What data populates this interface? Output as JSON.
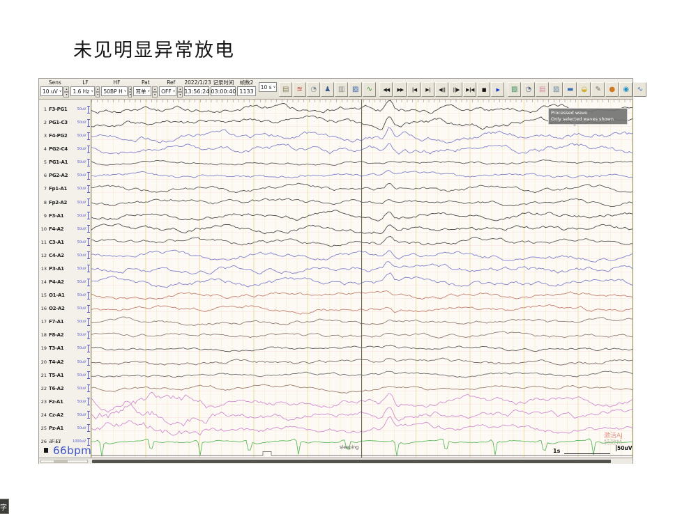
{
  "page": {
    "title": "未见明显异常放电",
    "subtitle_badge": "字"
  },
  "ui": {
    "dropdown_arrow": "∨",
    "spinner_up": "▴",
    "spinner_down": "▾"
  },
  "toolbar": {
    "filters": [
      {
        "label": "Sens",
        "value": "10 uV"
      },
      {
        "label": "LF",
        "value": "1.6 Hz"
      },
      {
        "label": "HF",
        "value": "50BP H"
      },
      {
        "label": "Pat",
        "value": "耳单"
      },
      {
        "label": "Ref",
        "value": "OFF"
      }
    ],
    "date": "2022/1/23",
    "time": "13:56:24",
    "record_label": "记录时间",
    "record_value": "03:00:40",
    "frame_label": "帧数2",
    "frame_value": "1133",
    "epoch": "10 s",
    "icons1": [
      {
        "name": "open-file-icon",
        "glyph": "▤",
        "color": "#8a7f5d"
      },
      {
        "name": "signal-setup-icon",
        "glyph": "≋",
        "color": "#c03a2e"
      },
      {
        "name": "montage-globe-icon",
        "glyph": "◔",
        "color": "#7d8b99"
      },
      {
        "name": "patient-icon",
        "glyph": "♟",
        "color": "#3a5a8c"
      },
      {
        "name": "print-icon",
        "glyph": "▥",
        "color": "#8b8b8b"
      },
      {
        "name": "snapshot-icon",
        "glyph": "▨",
        "color": "#3a6ab0"
      },
      {
        "name": "trend-chart-icon",
        "glyph": "∿",
        "color": "#3a8a3a"
      }
    ],
    "playback": [
      {
        "name": "rewind-button",
        "glyph": "◀◀",
        "color": "#1f1f1f"
      },
      {
        "name": "fast-forward-button",
        "glyph": "▶▶",
        "color": "#1f1f1f"
      },
      {
        "name": "go-start-button",
        "glyph": "∣◀",
        "color": "#1f1f1f"
      },
      {
        "name": "go-end-button",
        "glyph": "▶∣",
        "color": "#1f1f1f"
      },
      {
        "name": "step-back-button",
        "glyph": "◀∣∣",
        "color": "#1f1f1f"
      },
      {
        "name": "step-forward-button",
        "glyph": "∣∣▶",
        "color": "#1f1f1f"
      },
      {
        "name": "center-cursor-button",
        "glyph": "▶∣◀",
        "color": "#1f1f1f"
      },
      {
        "name": "stop-button",
        "glyph": "■",
        "color": "#111111"
      },
      {
        "name": "play-button",
        "glyph": "▶",
        "color": "#1538c8"
      }
    ],
    "icons2": [
      {
        "name": "spectrum-chart-icon",
        "glyph": "▧",
        "color": "#3a8a5a"
      },
      {
        "name": "zoom-wave-icon",
        "glyph": "◔",
        "color": "#5a6a8a"
      },
      {
        "name": "annotate-wave-icon",
        "glyph": "▤",
        "color": "#d08aa0"
      },
      {
        "name": "mini-chart-icon",
        "glyph": "▨",
        "color": "#6a8aa0"
      },
      {
        "name": "ruler-icon",
        "glyph": "▬",
        "color": "#3a6ab0"
      },
      {
        "name": "event-folder-icon",
        "glyph": "◒",
        "color": "#d0b030"
      },
      {
        "name": "report-pen-icon",
        "glyph": "✎",
        "color": "#707070"
      },
      {
        "name": "sphere-map-icon",
        "glyph": "●",
        "color": "#d07820"
      },
      {
        "name": "brain-topo-icon",
        "glyph": "◉",
        "color": "#2090c0"
      },
      {
        "name": "wave-analysis-icon",
        "glyph": "∿",
        "color": "#3a70c0"
      }
    ]
  },
  "overlay": {
    "line1": "Processed wave",
    "line2": "Only selected waves shown"
  },
  "channels": [
    {
      "num": "1",
      "label": "F3-PG1",
      "scale": "50uV",
      "color": "#474747",
      "amp": 4.5,
      "ev": 10
    },
    {
      "num": "2",
      "label": "PG1-C3",
      "scale": "50uV",
      "color": "#474747",
      "amp": 4.5,
      "ev": 12
    },
    {
      "num": "3",
      "label": "F4-PG2",
      "scale": "50uV",
      "color": "#8080cc",
      "amp": 5,
      "ev": 14
    },
    {
      "num": "4",
      "label": "PG2-C4",
      "scale": "50uV",
      "color": "#8080cc",
      "amp": 5,
      "ev": 12
    },
    {
      "num": "5",
      "label": "PG1-A1",
      "scale": "50uV",
      "color": "#565656",
      "amp": 2.5,
      "ev": 3
    },
    {
      "num": "6",
      "label": "PG2-A2",
      "scale": "50uV",
      "color": "#8080cc",
      "amp": 3,
      "ev": 4
    },
    {
      "num": "7",
      "label": "Fp1-A1",
      "scale": "50uV",
      "color": "#565656",
      "amp": 3.5,
      "ev": 5
    },
    {
      "num": "8",
      "label": "Fp2-A2",
      "scale": "50uV",
      "color": "#565656",
      "amp": 3.5,
      "ev": 5
    },
    {
      "num": "9",
      "label": "F3-A1",
      "scale": "50uV",
      "color": "#474747",
      "amp": 4,
      "ev": 8
    },
    {
      "num": "10",
      "label": "F4-A2",
      "scale": "50uV",
      "color": "#474747",
      "amp": 4,
      "ev": 9
    },
    {
      "num": "11",
      "label": "C3-A1",
      "scale": "50uV",
      "color": "#565656",
      "amp": 3.5,
      "ev": 7
    },
    {
      "num": "12",
      "label": "C4-A2",
      "scale": "50uV",
      "color": "#8080cc",
      "amp": 4,
      "ev": 8
    },
    {
      "num": "13",
      "label": "P3-A1",
      "scale": "50uV",
      "color": "#8080cc",
      "amp": 4.5,
      "ev": 9
    },
    {
      "num": "14",
      "label": "P4-A2",
      "scale": "50uV",
      "color": "#8080cc",
      "amp": 4.5,
      "ev": 10
    },
    {
      "num": "15",
      "label": "O1-A1",
      "scale": "50uV",
      "color": "#c47e6e",
      "amp": 3.5,
      "ev": 4
    },
    {
      "num": "16",
      "label": "O2-A2",
      "scale": "50uV",
      "color": "#c47e6e",
      "amp": 3.5,
      "ev": 4
    },
    {
      "num": "17",
      "label": "F7-A1",
      "scale": "50uV",
      "color": "#8d7b70",
      "amp": 3,
      "ev": 3
    },
    {
      "num": "18",
      "label": "F8-A2",
      "scale": "50uV",
      "color": "#8d7b70",
      "amp": 3,
      "ev": 3
    },
    {
      "num": "19",
      "label": "T3-A1",
      "scale": "50uV",
      "color": "#5a5a5a",
      "amp": 2.5,
      "ev": 3
    },
    {
      "num": "20",
      "label": "T4-A2",
      "scale": "50uV",
      "color": "#776a62",
      "amp": 3,
      "ev": 4
    },
    {
      "num": "21",
      "label": "T5-A1",
      "scale": "50uV",
      "color": "#6a6a6a",
      "amp": 2.5,
      "ev": 3
    },
    {
      "num": "22",
      "label": "T6-A2",
      "scale": "50uV",
      "color": "#9a7d6d",
      "amp": 3,
      "ev": 3
    },
    {
      "num": "23",
      "label": "Fz-A1",
      "scale": "50uV",
      "color": "#cf8ccf",
      "amp": 5,
      "ev": 13,
      "burst": true
    },
    {
      "num": "24",
      "label": "Cz-A2",
      "scale": "50uV",
      "color": "#cf8ccf",
      "amp": 5.5,
      "ev": 14,
      "burst": true
    },
    {
      "num": "25",
      "label": "Pz-A1",
      "scale": "50uV",
      "color": "#cf8ccf",
      "amp": 4.5,
      "ev": 12,
      "burst": true
    },
    {
      "num": "26",
      "label": "∂F-E1",
      "scale": "1000uV",
      "color": "#5cb85c",
      "amp": 1.2,
      "ev": 0,
      "ecg": true,
      "italic": true
    }
  ],
  "footer": {
    "heart_rate": "66bpm",
    "sleeping": "sleeping",
    "time_scale": "1s",
    "amp_scale": "50uV"
  },
  "watermark": {
    "line1": "激活AJ",
    "line2": "特效M"
  }
}
